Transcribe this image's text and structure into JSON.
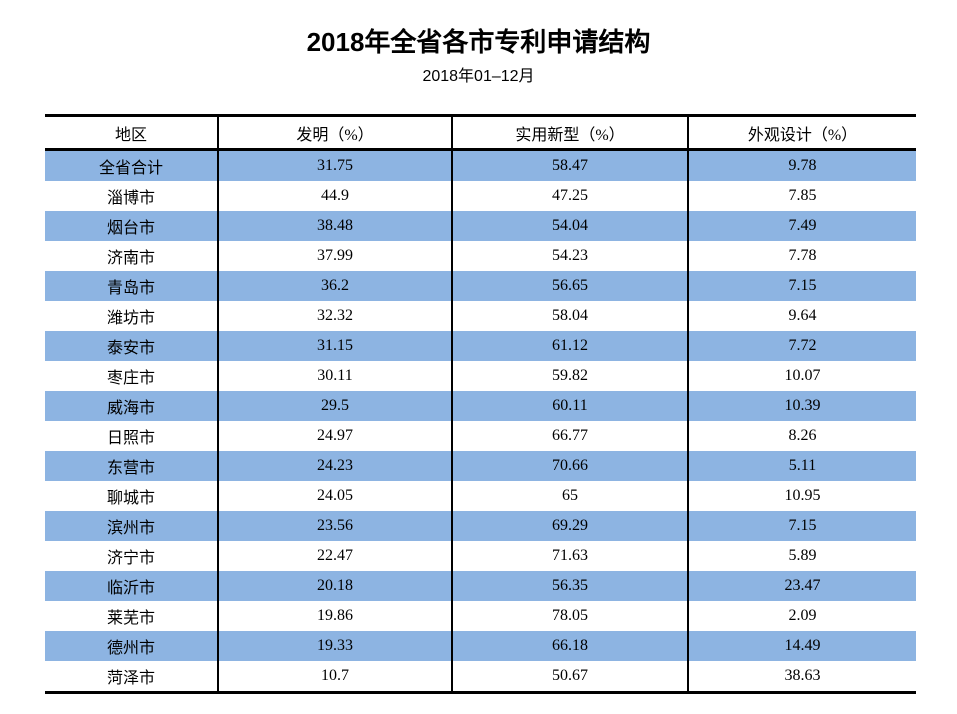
{
  "header": {
    "title": "2018年全省各市专利申请结构",
    "subtitle": "2018年01–12月"
  },
  "colors": {
    "row_highlight": "#8DB4E2",
    "border": "#000000",
    "text": "#000000",
    "background": "#FFFFFF"
  },
  "chart_data": {
    "type": "table",
    "title": "2018年全省各市专利申请结构",
    "subtitle": "2018年01–12月",
    "columns": [
      "地区",
      "发明（%）",
      "实用新型（%）",
      "外观设计（%）"
    ],
    "rows": [
      [
        "全省合计",
        31.75,
        58.47,
        9.78
      ],
      [
        "淄博市",
        44.9,
        47.25,
        7.85
      ],
      [
        "烟台市",
        38.48,
        54.04,
        7.49
      ],
      [
        "济南市",
        37.99,
        54.23,
        7.78
      ],
      [
        "青岛市",
        36.2,
        56.65,
        7.15
      ],
      [
        "潍坊市",
        32.32,
        58.04,
        9.64
      ],
      [
        "泰安市",
        31.15,
        61.12,
        7.72
      ],
      [
        "枣庄市",
        30.11,
        59.82,
        10.07
      ],
      [
        "威海市",
        29.5,
        60.11,
        10.39
      ],
      [
        "日照市",
        24.97,
        66.77,
        8.26
      ],
      [
        "东营市",
        24.23,
        70.66,
        5.11
      ],
      [
        "聊城市",
        24.05,
        65,
        10.95
      ],
      [
        "滨州市",
        23.56,
        69.29,
        7.15
      ],
      [
        "济宁市",
        22.47,
        71.63,
        5.89
      ],
      [
        "临沂市",
        20.18,
        56.35,
        23.47
      ],
      [
        "莱芜市",
        19.86,
        78.05,
        2.09
      ],
      [
        "德州市",
        19.33,
        66.18,
        14.49
      ],
      [
        "菏泽市",
        10.7,
        50.67,
        38.63
      ]
    ],
    "layout": {
      "stripe_pattern": "even rows highlighted (row 0 = 全省合计 is blue)",
      "grid": "thick horizontal rules above/below header and at table bottom; thin vertical separators between columns; no outer side borders"
    }
  }
}
